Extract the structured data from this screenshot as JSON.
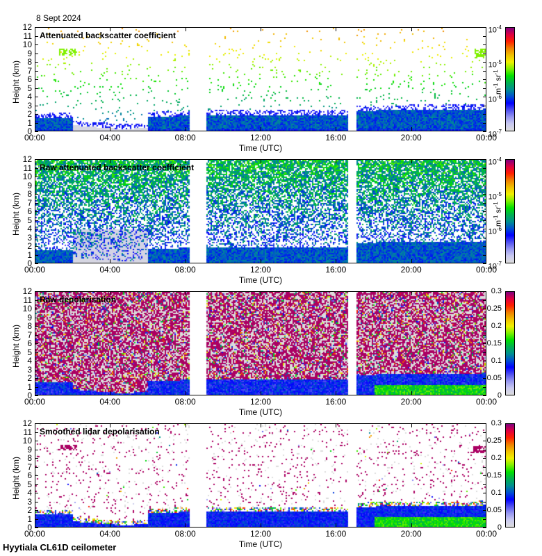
{
  "header": {
    "date": "8 Sept 2024"
  },
  "footer": {
    "site": "Hyytiala CL61D ceilometer"
  },
  "colors": {
    "colormap": [
      "#dcdcdc",
      "#c8c8f0",
      "#9696f0",
      "#5050f0",
      "#0000ff",
      "#0050d0",
      "#009090",
      "#00b050",
      "#00e000",
      "#80f000",
      "#f0f000",
      "#f0c000",
      "#f08000",
      "#ff2000",
      "#e00040",
      "#800080"
    ]
  },
  "chart_data": [
    {
      "type": "heatmap",
      "title": "Attenuated backscatter coefficient",
      "xlabel": "Time (UTC)",
      "ylabel": "Height (km)",
      "xticks": [
        "00:00",
        "04:00",
        "08:00",
        "12:00",
        "16:00",
        "20:00",
        "00:00"
      ],
      "yticks": [
        "0",
        "1",
        "2",
        "3",
        "4",
        "5",
        "6",
        "7",
        "8",
        "9",
        "10",
        "11",
        "12"
      ],
      "xlim_hours": [
        0,
        24
      ],
      "ylim_km": [
        0,
        12
      ],
      "data_gaps_hours": [
        [
          8.2,
          9.1
        ],
        [
          16.6,
          17.1
        ]
      ],
      "colorbar": {
        "scale": "log",
        "range": [
          1e-07,
          0.0001
        ],
        "ticks": [
          {
            "base": "10",
            "exp": "-4"
          },
          {
            "base": "10",
            "exp": "-5"
          },
          {
            "base": "10",
            "exp": "-6"
          },
          {
            "base": "10",
            "exp": "-7"
          }
        ],
        "unit_base_1": "m",
        "unit_exp_1": "-1",
        "unit_base_2": " sr",
        "unit_exp_2": "-1"
      },
      "features": {
        "boundary_layer_top_km": 1.6,
        "cirrus_patch_km": 9.3
      }
    },
    {
      "type": "heatmap",
      "title": "Raw attenuated backscatter coefficient",
      "xlabel": "Time (UTC)",
      "ylabel": "Height (km)",
      "xticks": [
        "00:00",
        "04:00",
        "08:00",
        "12:00",
        "16:00",
        "20:00",
        "00:00"
      ],
      "yticks": [
        "0",
        "1",
        "2",
        "3",
        "4",
        "5",
        "6",
        "7",
        "8",
        "9",
        "10",
        "11",
        "12"
      ],
      "xlim_hours": [
        0,
        24
      ],
      "ylim_km": [
        0,
        12
      ],
      "data_gaps_hours": [
        [
          8.2,
          9.1
        ],
        [
          16.6,
          17.1
        ]
      ],
      "colorbar": {
        "scale": "log",
        "range": [
          1e-07,
          0.0001
        ],
        "ticks": [
          {
            "base": "10",
            "exp": "-4"
          },
          {
            "base": "10",
            "exp": "-5"
          },
          {
            "base": "10",
            "exp": "-6"
          },
          {
            "base": "10",
            "exp": "-7"
          }
        ],
        "unit_base_1": "m",
        "unit_exp_1": "-1",
        "unit_base_2": " sr",
        "unit_exp_2": "-1"
      }
    },
    {
      "type": "heatmap",
      "title": "Raw depolarisation",
      "xlabel": "Time (UTC)",
      "ylabel": "Height (km)",
      "xticks": [
        "00:00",
        "04:00",
        "08:00",
        "12:00",
        "16:00",
        "20:00",
        "00:00"
      ],
      "yticks": [
        "0",
        "1",
        "2",
        "3",
        "4",
        "5",
        "6",
        "7",
        "8",
        "9",
        "10",
        "11",
        "12"
      ],
      "xlim_hours": [
        0,
        24
      ],
      "ylim_km": [
        0,
        12
      ],
      "data_gaps_hours": [
        [
          8.2,
          9.1
        ],
        [
          16.6,
          17.1
        ]
      ],
      "colorbar": {
        "scale": "linear",
        "range": [
          0,
          0.3
        ],
        "ticks": [
          "0.3",
          "0.25",
          "0.2",
          "0.15",
          "0.1",
          "0.05",
          "0"
        ]
      }
    },
    {
      "type": "heatmap",
      "title": "Smoothed lidar depolarisation",
      "xlabel": "Time (UTC)",
      "ylabel": "Height (km)",
      "xticks": [
        "00:00",
        "04:00",
        "08:00",
        "12:00",
        "16:00",
        "20:00",
        "00:00"
      ],
      "yticks": [
        "0",
        "1",
        "2",
        "3",
        "4",
        "5",
        "6",
        "7",
        "8",
        "9",
        "10",
        "11",
        "12"
      ],
      "xlim_hours": [
        0,
        24
      ],
      "ylim_km": [
        0,
        12
      ],
      "data_gaps_hours": [
        [
          8.2,
          9.1
        ],
        [
          16.6,
          17.1
        ]
      ],
      "colorbar": {
        "scale": "linear",
        "range": [
          0,
          0.3
        ],
        "ticks": [
          "0.3",
          "0.25",
          "0.2",
          "0.15",
          "0.1",
          "0.05",
          "0"
        ]
      }
    }
  ]
}
